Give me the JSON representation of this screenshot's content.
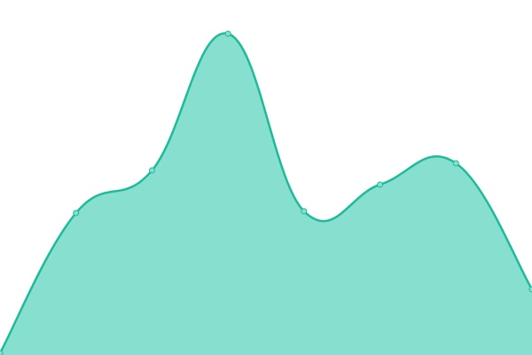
{
  "chart_data": {
    "type": "area",
    "categories": [
      null,
      null,
      null,
      null,
      null,
      null,
      null,
      null
    ],
    "values": [
      0.5,
      40,
      52,
      90.5,
      40.5,
      48,
      54,
      18.5
    ],
    "color": "#1fbb98",
    "fill": "#87e0cf",
    "ylim": [
      0,
      100
    ],
    "grid": false
  }
}
